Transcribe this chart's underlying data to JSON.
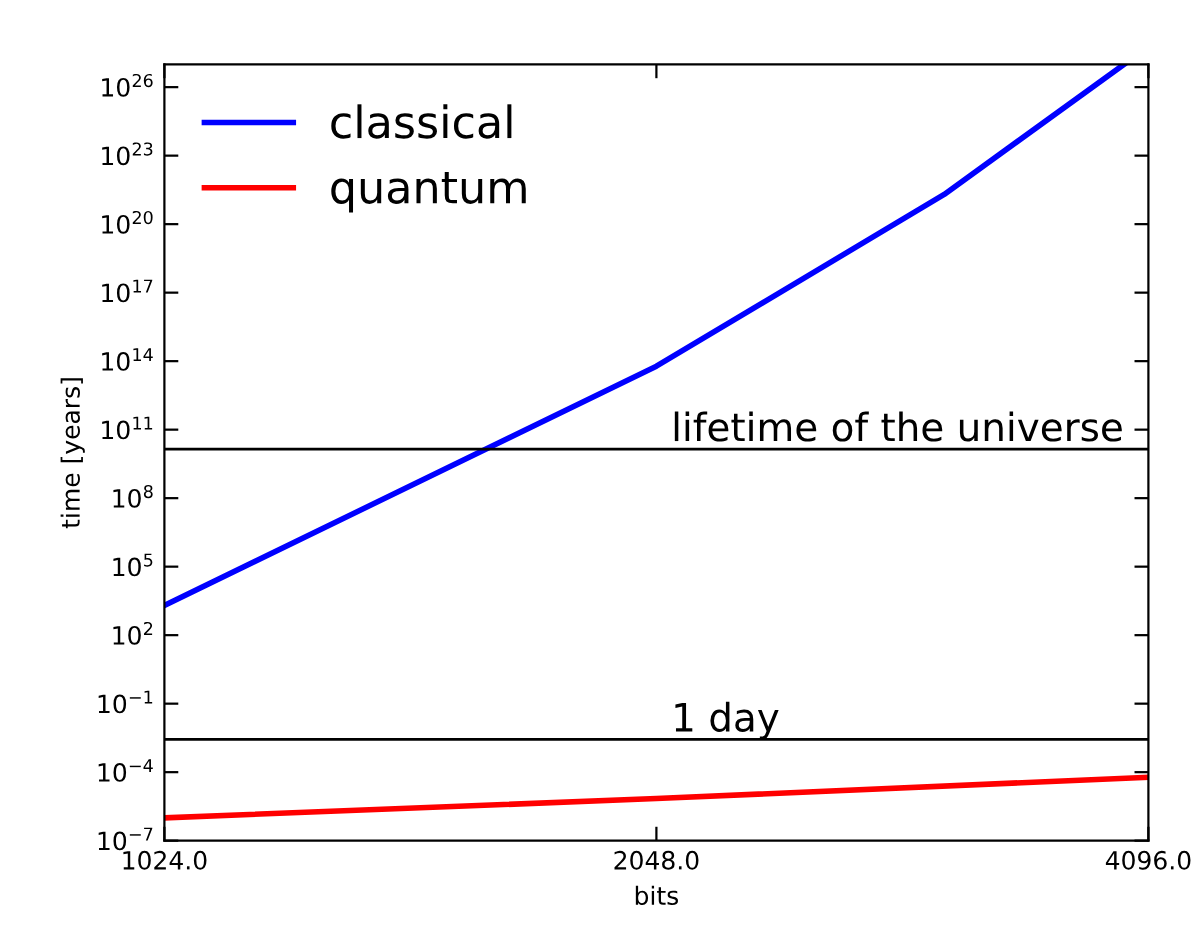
{
  "chart_data": {
    "type": "line",
    "xlabel": "bits",
    "ylabel": "time [years]",
    "log": "xy",
    "xlim": [
      1024,
      4096
    ],
    "xticks": [
      {
        "value": 1024,
        "label": "1024.0"
      },
      {
        "value": 2048,
        "label": "2048.0"
      },
      {
        "value": 4096,
        "label": "4096.0"
      }
    ],
    "ylim": [
      1e-07,
      1e+27
    ],
    "yticks": [
      {
        "value": 1e-07,
        "label": "10$^{−7}$"
      },
      {
        "value": 0.0001,
        "label": "10$^{−4}$"
      },
      {
        "value": 0.1,
        "label": "10$^{−1}$"
      },
      {
        "value": 100,
        "label": "10$^{2}$"
      },
      {
        "value": 100000.0,
        "label": "10$^{5}$"
      },
      {
        "value": 100000000.0,
        "label": "10$^{8}$"
      },
      {
        "value": 100000000000.0,
        "label": "10$^{11}$"
      },
      {
        "value": 100000000000000.0,
        "label": "10$^{14}$"
      },
      {
        "value": 1e+17,
        "label": "10$^{17}$"
      },
      {
        "value": 1e+20,
        "label": "10$^{20}$"
      },
      {
        "value": 1e+23,
        "label": "10$^{23}$"
      },
      {
        "value": 1e+26,
        "label": "10$^{26}$"
      }
    ],
    "series": [
      {
        "name": "classical",
        "color": "#0000ff",
        "x": [
          1024,
          2048,
          3072,
          3958
        ],
        "values": [
          2000.0,
          60000000000000.0,
          2e+21,
          1e+27
        ]
      },
      {
        "name": "quantum",
        "color": "#ff0000",
        "x": [
          1024,
          2048,
          4096
        ],
        "values": [
          1e-06,
          7e-06,
          6e-05
        ]
      }
    ],
    "ref_lines": [
      {
        "axis": "y",
        "value": 14000000000.0,
        "label": "lifetime of the universe",
        "color": "#000000"
      },
      {
        "axis": "y",
        "value": 0.0027,
        "label": "1 day",
        "color": "#000000"
      }
    ],
    "legend": "top left",
    "grid": false
  }
}
